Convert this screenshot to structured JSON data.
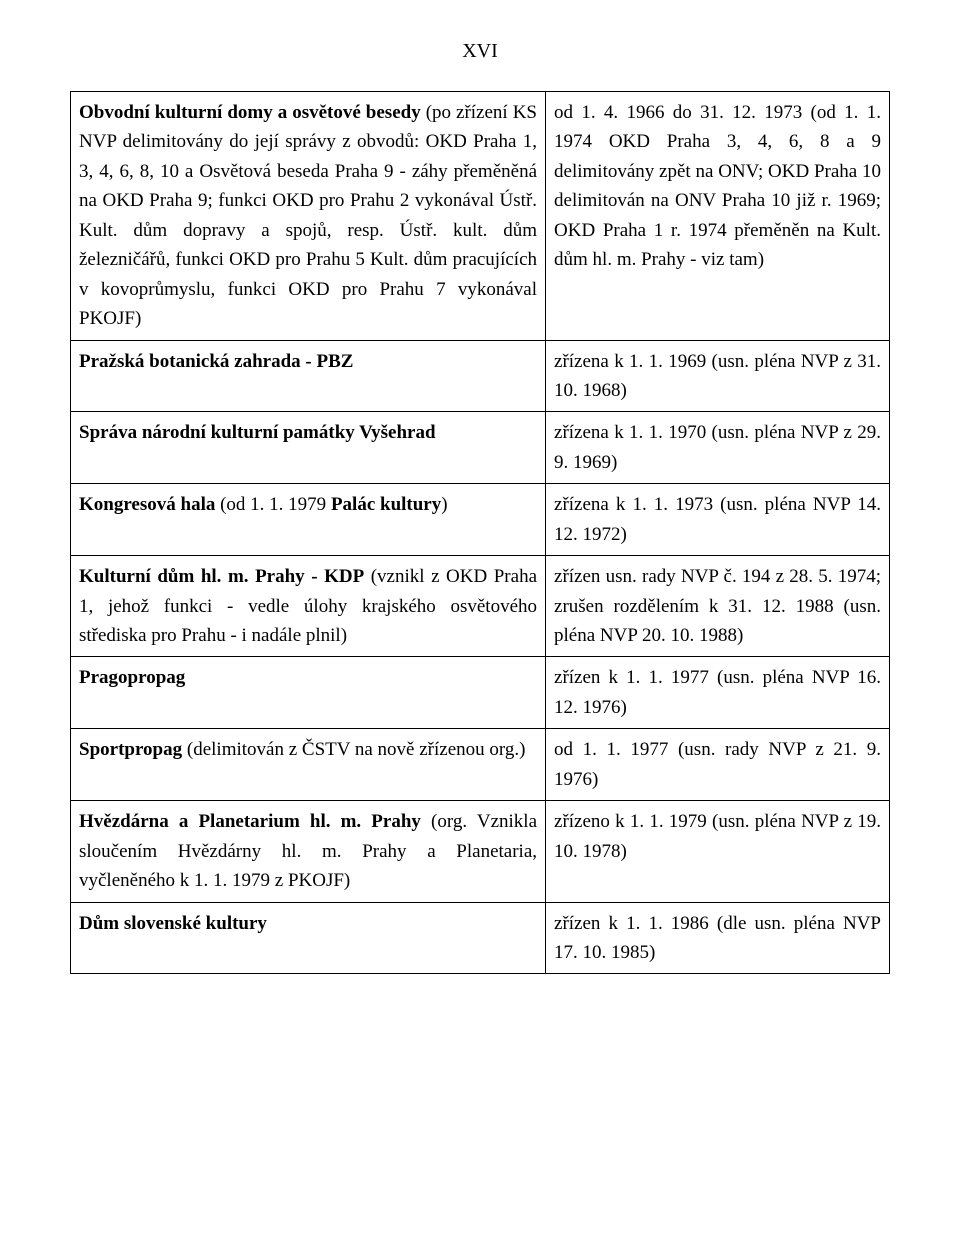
{
  "page_number_label": "XVI",
  "rows": [
    {
      "left": [
        {
          "t": "Obvodní kulturní domy a osvětové besedy",
          "b": true
        },
        {
          "t": " (po zřízení KS NVP delimitovány do její správy z obvodů: OKD Praha 1, 3, 4, 6, 8, 10 a Osvětová beseda Praha 9 - záhy přeměněná na OKD Praha 9; funkci OKD pro Prahu 2 vykonával Ústř. Kult. dům dopravy a spojů, resp. Ústř. kult. dům železničářů, funkci OKD pro Prahu 5 Kult. dům pracujících v kovoprůmyslu, funkci OKD pro Prahu 7 vykonával PKOJF)"
        }
      ],
      "right": [
        {
          "t": "od 1. 4. 1966 do 31. 12. 1973 (od 1. 1. 1974 OKD Praha 3, 4, 6, 8 a 9 delimitovány zpět na ONV; OKD Praha 10 delimitován na ONV Praha 10 již r. 1969; OKD Praha 1 r. 1974 přeměněn na Kult. dům hl. m. Prahy - viz tam)"
        }
      ]
    },
    {
      "left": [
        {
          "t": "Pražská botanická zahrada - PBZ",
          "b": true
        }
      ],
      "right": [
        {
          "t": "zřízena k 1. 1. 1969 (usn. pléna NVP z 31. 10. 1968)"
        }
      ]
    },
    {
      "left": [
        {
          "t": "Správa národní kulturní památky Vyšehrad",
          "b": true
        }
      ],
      "right": [
        {
          "t": "zřízena k 1. 1. 1970 (usn. pléna NVP z 29. 9. 1969)"
        }
      ]
    },
    {
      "left": [
        {
          "t": "Kongresová hala",
          "b": true
        },
        {
          "t": " (od 1. 1. 1979 "
        },
        {
          "t": "Palác kultury",
          "b": true
        },
        {
          "t": ")"
        }
      ],
      "right": [
        {
          "t": "zřízena k 1. 1. 1973 (usn. pléna NVP 14. 12. 1972)"
        }
      ]
    },
    {
      "left": [
        {
          "t": "Kulturní dům hl. m. Prahy - KDP",
          "b": true
        },
        {
          "t": " (vznikl z OKD Praha 1, jehož funkci - vedle úlohy krajského osvětového střediska pro Prahu - i nadále plnil)"
        }
      ],
      "right": [
        {
          "t": "zřízen usn. rady NVP č. 194 z 28. 5. 1974; zrušen rozdělením k 31. 12. 1988 (usn. pléna NVP 20. 10. 1988)"
        }
      ]
    },
    {
      "left": [
        {
          "t": "Pragopropag",
          "b": true
        }
      ],
      "right": [
        {
          "t": "zřízen k 1. 1. 1977 (usn. pléna NVP 16. 12. 1976)"
        }
      ]
    },
    {
      "left": [
        {
          "t": "Sportpropag",
          "b": true
        },
        {
          "t": " (delimitován z ČSTV na nově zřízenou org.)"
        }
      ],
      "right": [
        {
          "t": "od 1. 1. 1977 (usn. rady NVP z 21. 9. 1976)"
        }
      ]
    },
    {
      "left": [
        {
          "t": "Hvězdárna a Planetarium hl. m. Prahy",
          "b": true
        },
        {
          "t": " (org. Vznikla sloučením Hvězdárny hl. m. Prahy a Planetaria, vyčleněného k 1. 1. 1979 z PKOJF)"
        }
      ],
      "right": [
        {
          "t": "zřízeno k 1. 1. 1979 (usn. pléna NVP z 19. 10. 1978)"
        }
      ]
    },
    {
      "left": [
        {
          "t": "Dům slovenské kultury",
          "b": true
        }
      ],
      "right": [
        {
          "t": "zřízen k 1. 1. 1986  (dle usn. pléna NVP 17. 10. 1985)"
        }
      ]
    }
  ]
}
